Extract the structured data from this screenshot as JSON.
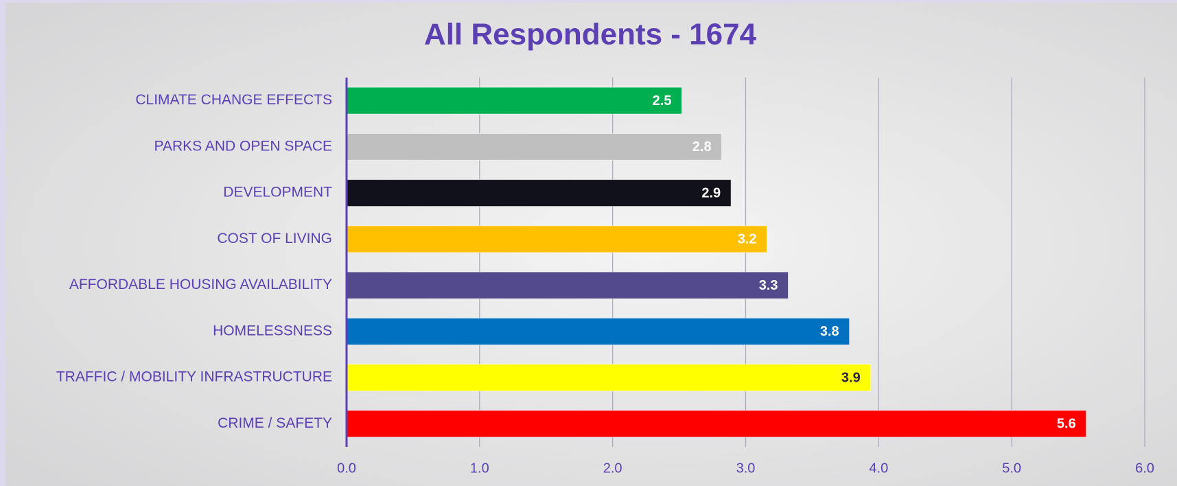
{
  "chart_data": {
    "type": "bar",
    "orientation": "horizontal",
    "title": "All Respondents - 1674",
    "categories": [
      "CLIMATE CHANGE EFFECTS",
      "PARKS AND OPEN SPACE",
      "DEVELOPMENT",
      "COST OF LIVING",
      "AFFORDABLE HOUSING AVAILABILITY",
      "HOMELESSNESS",
      "TRAFFIC / MOBILITY INFRASTRUCTURE",
      "CRIME / SAFETY"
    ],
    "values": [
      2.52,
      2.82,
      2.89,
      3.16,
      3.32,
      3.78,
      3.94,
      5.56
    ],
    "value_labels": [
      "2.5",
      "2.8",
      "2.9",
      "3.2",
      "3.3",
      "3.8",
      "3.9",
      "5.6"
    ],
    "colors": [
      "#00b050",
      "#bfbfbf",
      "#111119",
      "#ffc000",
      "#524a8a",
      "#0070c0",
      "#ffff00",
      "#ff0000"
    ],
    "xlim": [
      0,
      6
    ],
    "xticks": [
      {
        "value": 0,
        "label": "0.0"
      },
      {
        "value": 1,
        "label": "1.0"
      },
      {
        "value": 2,
        "label": "2.0"
      },
      {
        "value": 3,
        "label": "3.0"
      },
      {
        "value": 4,
        "label": "4.0"
      },
      {
        "value": 5,
        "label": "5.0"
      },
      {
        "value": 6,
        "label": "6.0"
      }
    ],
    "grid": true
  }
}
